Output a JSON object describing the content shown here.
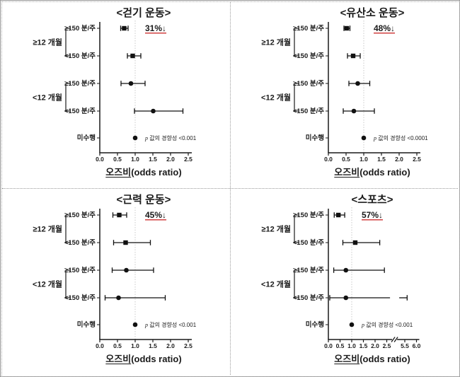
{
  "page": {
    "background": "#ffffff",
    "frame_border": "#9b9b9b",
    "divider_style": "dotted"
  },
  "shared": {
    "xlabel_ko": "오즈비",
    "xlabel_en": "(odds ratio)",
    "refline_value": 1.0,
    "p_prefix": "p",
    "colors": {
      "marker": "#111111",
      "axis": "#1a1a1a",
      "annotation_red": "#c00000",
      "refline": "#c9c9c9",
      "trend_text": "#3f3f3f"
    }
  },
  "chart_data": [
    {
      "type": "forest",
      "id": "walking",
      "title": "<걷기 운동>",
      "annotation": "31%↓",
      "trend_text": "값의 경향성 <0.001",
      "xlim": [
        0,
        2.5
      ],
      "xticks": [
        0,
        0.5,
        1.0,
        1.5,
        2.0,
        2.5
      ],
      "xtick_labels": [
        "0.0",
        "0.5",
        "1.0",
        "1.5",
        "2.0",
        "2.5"
      ],
      "axis_break": null,
      "rows": [
        {
          "group": "≥12 개월",
          "label": "≥150 분/주",
          "marker": "square",
          "or": 0.69,
          "ci": [
            0.59,
            0.8
          ]
        },
        {
          "group": "≥12 개월",
          "label": "<150 분/주",
          "marker": "square",
          "or": 0.93,
          "ci": [
            0.78,
            1.16
          ]
        },
        {
          "group": "<12 개월",
          "label": "≥150 분/주",
          "marker": "circle",
          "or": 0.88,
          "ci": [
            0.6,
            1.28
          ]
        },
        {
          "group": "<12 개월",
          "label": "<150 분/주",
          "marker": "circle",
          "or": 1.51,
          "ci": [
            0.98,
            2.35
          ]
        },
        {
          "group": "",
          "label": "미수행",
          "marker": "circle",
          "or": 1.0,
          "ci": null
        }
      ]
    },
    {
      "type": "forest",
      "id": "aerobic",
      "title": "<유산소 운동>",
      "annotation": "48%↓",
      "trend_text": "값의 경향성 <0.0001",
      "xlim": [
        0,
        2.5
      ],
      "xticks": [
        0,
        0.5,
        1.0,
        1.5,
        2.0,
        2.5
      ],
      "xtick_labels": [
        "0.0",
        "0.5",
        "1.0",
        "1.5",
        "2.0",
        "2.5"
      ],
      "axis_break": null,
      "rows": [
        {
          "group": "≥12 개월",
          "label": "≥150 분/주",
          "marker": "square",
          "or": 0.52,
          "ci": [
            0.44,
            0.61
          ]
        },
        {
          "group": "≥12 개월",
          "label": "<150 분/주",
          "marker": "square",
          "or": 0.7,
          "ci": [
            0.54,
            0.9
          ]
        },
        {
          "group": "<12 개월",
          "label": "≥150 분/주",
          "marker": "circle",
          "or": 0.83,
          "ci": [
            0.58,
            1.17
          ]
        },
        {
          "group": "<12 개월",
          "label": "<150 분/주",
          "marker": "circle",
          "or": 0.72,
          "ci": [
            0.42,
            1.3
          ]
        },
        {
          "group": "",
          "label": "미수행",
          "marker": "circle",
          "or": 1.0,
          "ci": null
        }
      ]
    },
    {
      "type": "forest",
      "id": "strength",
      "title": "<근력 운동>",
      "annotation": "45%↓",
      "trend_text": "값의 경향성 <0.001",
      "xlim": [
        0,
        2.5
      ],
      "xticks": [
        0,
        0.5,
        1.0,
        1.5,
        2.0,
        2.5
      ],
      "xtick_labels": [
        "0.0",
        "0.5",
        "1.0",
        "1.5",
        "2.0",
        "2.5"
      ],
      "axis_break": null,
      "rows": [
        {
          "group": "≥12 개월",
          "label": "≥150 분/주",
          "marker": "square",
          "or": 0.55,
          "ci": [
            0.37,
            0.76
          ]
        },
        {
          "group": "≥12 개월",
          "label": "<150 분/주",
          "marker": "square",
          "or": 0.73,
          "ci": [
            0.39,
            1.43
          ]
        },
        {
          "group": "<12 개월",
          "label": "≥150 분/주",
          "marker": "circle",
          "or": 0.75,
          "ci": [
            0.35,
            1.52
          ]
        },
        {
          "group": "<12 개월",
          "label": "<150 분/주",
          "marker": "circle",
          "or": 0.53,
          "ci": [
            0.15,
            1.85
          ]
        },
        {
          "group": "",
          "label": "미수행",
          "marker": "circle",
          "or": 1.0,
          "ci": null
        }
      ]
    },
    {
      "type": "forest",
      "id": "sports",
      "title": "<스포츠>",
      "annotation": "57%↓",
      "trend_text": "값의 경향성 <0.001",
      "xlim": [
        0,
        6.0
      ],
      "xticks": [
        0,
        0.5,
        1.0,
        1.5,
        2.0,
        2.5
      ],
      "xtick_labels": [
        "0.0",
        "0.5",
        "1.0",
        "1.5",
        "2.0",
        "2.5"
      ],
      "xticks2": [
        5.5,
        6.0
      ],
      "xtick_labels2": [
        "5.5",
        "6.0"
      ],
      "axis_break": {
        "after_value": 2.7,
        "resume_value": 5.2
      },
      "rows": [
        {
          "group": "≥12 개월",
          "label": "≥150 분/주",
          "marker": "square",
          "or": 0.43,
          "ci": [
            0.25,
            0.7
          ]
        },
        {
          "group": "≥12 개월",
          "label": "<150 분/주",
          "marker": "square",
          "or": 1.15,
          "ci": [
            0.62,
            2.2
          ]
        },
        {
          "group": "<12 개월",
          "label": "≥150 분/주",
          "marker": "circle",
          "or": 0.75,
          "ci": [
            0.23,
            2.4
          ]
        },
        {
          "group": "<12 개월",
          "label": "<150 분/주",
          "marker": "circle",
          "or": 0.75,
          "ci": [
            0.06,
            5.6
          ]
        },
        {
          "group": "",
          "label": "미수행",
          "marker": "circle",
          "or": 1.0,
          "ci": null
        }
      ]
    }
  ]
}
